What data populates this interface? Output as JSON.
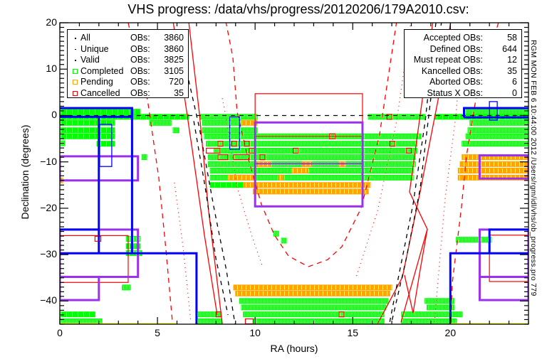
{
  "title": "VHS progress: /data/vhs/progress/20120206/179A2010.csv:",
  "side_text": "RGM MON FEB  6 10:44:00 2012 /Users/rgm/idl/vhs/ob_progress.pro 779",
  "legend": [
    {
      "marker": "dot",
      "label": "All",
      "obs_label": "OBs:",
      "value": "3860"
    },
    {
      "marker": "dot",
      "label": "Unique",
      "obs_label": "OBs:",
      "value": "3860"
    },
    {
      "marker": "dot",
      "label": "Valid",
      "obs_label": "OBs:",
      "value": "3825"
    },
    {
      "marker": "square",
      "color": "#00ff00",
      "label": "Completed",
      "obs_label": "OBs:",
      "value": "3105"
    },
    {
      "marker": "square",
      "color": "#ffa500",
      "label": "Pending",
      "obs_label": "OBs:",
      "value": "720"
    },
    {
      "marker": "square",
      "color": "#ff0000",
      "label": "Cancelled",
      "obs_label": "OBs:",
      "value": "35"
    }
  ],
  "stats": [
    {
      "label": "Accepted OBs:",
      "value": "58"
    },
    {
      "label": "Defined OBs:",
      "value": "644"
    },
    {
      "label": "Must repeat OBs:",
      "value": "12"
    },
    {
      "label": "Kancelled OBs:",
      "value": "35"
    },
    {
      "label": "Aborted OBs:",
      "value": "6"
    },
    {
      "label": "Status X OBs:",
      "value": "0"
    }
  ],
  "colors": {
    "completed": "#00ff00",
    "pending": "#ffa500",
    "cancelled": "#ff0000",
    "purple": "#9b30f0",
    "blue": "#0000ff",
    "yellow": "#ffff00",
    "curve_red": "#ff0000"
  },
  "chart_data": {
    "type": "scatter",
    "title": "VHS progress: /data/vhs/progress/20120206/179A2010.csv:",
    "xlabel": "RA (hours)",
    "ylabel": "Declination (degrees)",
    "xlim": [
      0,
      24
    ],
    "ylim": [
      -45,
      20
    ],
    "xticks": [
      0,
      5,
      10,
      15,
      20
    ],
    "xtick_labels": [
      "0",
      "5",
      "10",
      "15",
      "20"
    ],
    "yticks": [
      20,
      10,
      0,
      -10,
      -20,
      -30,
      -40
    ],
    "ytick_labels": [
      "20",
      "10",
      "0",
      "−10",
      "−20",
      "−30",
      "−40"
    ],
    "legend_position": "top-left",
    "tile_strips": {
      "completed": [
        [
          0,
          4.1,
          0.8,
          "s"
        ],
        [
          0,
          6.6,
          -0.3,
          "s"
        ],
        [
          7.2,
          10.1,
          -0.3,
          "h"
        ],
        [
          15.8,
          18.7,
          -0.3,
          "h"
        ],
        [
          19.2,
          24,
          -0.3,
          "s"
        ],
        [
          20.8,
          24,
          0.8,
          "h"
        ],
        [
          0,
          2.8,
          -1.6,
          "s"
        ],
        [
          4.6,
          5.7,
          -1.6,
          "h"
        ],
        [
          7.3,
          9.3,
          -1.6,
          "h"
        ],
        [
          21.0,
          24,
          -1.6,
          "h"
        ],
        [
          0,
          2.8,
          -3.2,
          "s"
        ],
        [
          5.8,
          6.1,
          -3.2,
          "h"
        ],
        [
          7.3,
          10.1,
          -3.2,
          "h"
        ],
        [
          20.9,
          24,
          -3.2,
          "h"
        ],
        [
          0,
          2.8,
          -4.5,
          "s"
        ],
        [
          7.4,
          18.5,
          -4.5,
          "h"
        ],
        [
          20.8,
          24,
          -4.5,
          "h"
        ],
        [
          1.9,
          2.8,
          -6.1,
          "s"
        ],
        [
          7.5,
          18.3,
          -6.1,
          "h"
        ],
        [
          20.6,
          24,
          -6.1,
          "h"
        ],
        [
          7.9,
          18.3,
          -7.6,
          "h"
        ],
        [
          7.6,
          18.2,
          -9.0,
          "h"
        ],
        [
          7.6,
          18.2,
          -10.5,
          "h"
        ],
        [
          7.7,
          18.1,
          -11.9,
          "h"
        ],
        [
          7.7,
          18.1,
          -13.4,
          "h"
        ],
        [
          7.7,
          9.4,
          -15.0,
          "s"
        ],
        [
          9.2,
          16.8,
          -40.0,
          "h"
        ],
        [
          18.7,
          20.2,
          -40.0,
          "h"
        ],
        [
          9.3,
          16.7,
          -41.4,
          "h"
        ],
        [
          18.8,
          20.2,
          -41.4,
          "h"
        ],
        [
          7.0,
          8.2,
          -42.9,
          "h"
        ],
        [
          9.4,
          16.6,
          -42.9,
          "h"
        ],
        [
          17.5,
          20.6,
          -42.9,
          "h"
        ],
        [
          0,
          1.8,
          -42.9,
          "s"
        ],
        [
          7.0,
          8.3,
          -44.4,
          "h"
        ],
        [
          9.9,
          16.6,
          -44.4,
          "h"
        ],
        [
          17.5,
          20.3,
          -44.4,
          "h"
        ],
        [
          0,
          2.15,
          -44.4,
          "h"
        ],
        [
          3.4,
          4.1,
          -26.6,
          "h"
        ],
        [
          3.4,
          4.1,
          -28.2,
          "s"
        ],
        [
          3.4,
          4.2,
          -29.7,
          "h"
        ],
        [
          3.2,
          3.6,
          -37.1,
          "h"
        ],
        [
          20.3,
          22.1,
          -26.8,
          "h"
        ],
        [
          4.2,
          4.45,
          -9.0,
          "h"
        ],
        [
          10.95,
          11.2,
          -25.5,
          "h"
        ],
        [
          11.35,
          11.6,
          -27.0,
          "h"
        ],
        [
          0,
          0.25,
          -6.0,
          "h"
        ]
      ],
      "pending": [
        [
          9.3,
          10.1,
          -1.6
        ],
        [
          20.6,
          24,
          -9.0
        ],
        [
          20.5,
          24,
          -10.5
        ],
        [
          20.4,
          24,
          -11.9
        ],
        [
          20.4,
          24,
          -13.4
        ],
        [
          9.4,
          15.9,
          -15.0
        ],
        [
          9.9,
          15.8,
          -16.4
        ],
        [
          8.9,
          17.0,
          -37.1
        ],
        [
          9.0,
          16.9,
          -38.4
        ],
        [
          10.1,
          10.8,
          -10.5
        ],
        [
          12.4,
          12.9,
          -10.5
        ],
        [
          14.3,
          14.6,
          -10.5
        ],
        [
          11.9,
          12.7,
          -11.9
        ],
        [
          8.6,
          9.95,
          -13.4
        ],
        [
          11.2,
          11.45,
          -13.4
        ],
        [
          0,
          0.15,
          -14.0
        ]
      ],
      "cancelled": [
        [
          8.1,
          8.35,
          -6.1
        ],
        [
          8.8,
          9.05,
          -6.1
        ],
        [
          9.45,
          9.7,
          -6.1
        ],
        [
          7.5,
          8.2,
          -7.6
        ],
        [
          9.7,
          10.0,
          -7.6
        ],
        [
          11.95,
          12.2,
          -7.6
        ],
        [
          17.75,
          18.0,
          -7.6
        ],
        [
          8.1,
          8.6,
          -9.0
        ],
        [
          8.9,
          9.7,
          -9.0
        ],
        [
          10.25,
          10.5,
          -9.0
        ],
        [
          13.8,
          14.1,
          -4.5
        ],
        [
          16.75,
          17.0,
          -0.3
        ],
        [
          16.9,
          17.15,
          -6.1
        ],
        [
          9.5,
          9.9,
          -44.4
        ],
        [
          8.0,
          8.25,
          -42.9
        ],
        [
          14.3,
          14.55,
          -42.9
        ],
        [
          1.8,
          2.1,
          -26.6
        ]
      ]
    },
    "footprints": {
      "red_rects": [
        [
          10.0,
          15.5,
          4.7,
          -4.5
        ],
        [
          0,
          3.5,
          -25.9,
          -36.0
        ],
        [
          22.0,
          24,
          -25.8,
          -35.8
        ]
      ],
      "purple_rects": [
        [
          10.0,
          15.5,
          -1.5,
          -19.6
        ],
        [
          0,
          4.0,
          -8.8,
          -14.0
        ],
        [
          0,
          4.0,
          -24.6,
          -34.8
        ],
        [
          0,
          2.0,
          -34.8,
          -39.8
        ],
        [
          21.5,
          24,
          -24.6,
          -34.8
        ],
        [
          21.5,
          24,
          -34.8,
          -39.8
        ],
        [
          21.5,
          24,
          -8.6,
          -13.6
        ]
      ],
      "purple_lines": [
        [
          [
            10.0,
            -10.4
          ],
          [
            15.5,
            -10.4
          ]
        ]
      ],
      "blue_thin_rects": [
        [
          8.7,
          9.2,
          -0.3,
          -7.3
        ],
        [
          2.04,
          2.66,
          -1.9,
          -11.0
        ],
        [
          22.0,
          22.4,
          3.0,
          -1.0
        ]
      ],
      "blue_lines": [
        [
          [
            0,
            1.6
          ],
          [
            3.7,
            1.6
          ],
          [
            3.7,
            -29.7
          ]
        ],
        [
          [
            0,
            -0.3
          ],
          [
            3.7,
            -0.3
          ]
        ],
        [
          [
            2.0,
            -0.3
          ],
          [
            2.0,
            -29.7
          ]
        ],
        [
          [
            0,
            -24.6
          ],
          [
            2.0,
            -24.6
          ]
        ],
        [
          [
            0,
            -29.7
          ],
          [
            7.0,
            -29.7
          ],
          [
            7.0,
            -45
          ]
        ],
        [
          [
            20.7,
            -0.4
          ],
          [
            20.7,
            1.6
          ],
          [
            24,
            1.6
          ]
        ],
        [
          [
            20.7,
            -0.4
          ],
          [
            24,
            -0.4
          ]
        ],
        [
          [
            24,
            -24.6
          ],
          [
            22.0,
            -24.6
          ],
          [
            22.0,
            -29.7
          ]
        ],
        [
          [
            24,
            -29.7
          ],
          [
            20.0,
            -29.7
          ],
          [
            20.0,
            -45
          ]
        ]
      ],
      "yellow_lines": [
        [
          [
            0,
            -45
          ],
          [
            6.0,
            -45
          ]
        ],
        [
          [
            20.0,
            -45
          ],
          [
            24,
            -45
          ]
        ]
      ]
    },
    "curves": {
      "red_solid": [
        [
          [
            6.6,
            20.3
          ],
          [
            7.15,
            0.4
          ],
          [
            7.62,
            -20.6
          ],
          [
            8.32,
            -44.9
          ]
        ],
        [
          [
            5.8,
            20.3
          ],
          [
            6.35,
            5.0
          ],
          [
            6.78,
            -7.3
          ],
          [
            7.4,
            -25.7
          ],
          [
            8.06,
            -43.0
          ]
        ],
        [
          [
            20.02,
            20.3
          ],
          [
            19.37,
            3.4
          ],
          [
            18.45,
            -16.5
          ],
          [
            17.54,
            -34.9
          ],
          [
            16.27,
            -44.9
          ]
        ],
        [
          [
            19.11,
            20.3
          ],
          [
            18.56,
            3.4
          ],
          [
            17.91,
            -16.5
          ],
          [
            18.82,
            -24.5
          ],
          [
            18.45,
            -33.4
          ],
          [
            18.09,
            -42.6
          ]
        ],
        [
          [
            18.82,
            -24.5
          ],
          [
            17.47,
            -44.6
          ]
        ],
        [
          [
            17.65,
            -34.4
          ],
          [
            18.09,
            -42.6
          ]
        ]
      ],
      "red_dashed": [
        [
          [
            3.5,
            20
          ],
          [
            4.05,
            9.5
          ],
          [
            4.49,
            3.4
          ],
          [
            5.07,
            -13.5
          ],
          [
            5.43,
            -28.8
          ],
          [
            5.76,
            -44.2
          ]
        ],
        [
          [
            8.5,
            20.3
          ],
          [
            8.86,
            12.6
          ],
          [
            9.08,
            0.8
          ],
          [
            9.59,
            -8.4
          ],
          [
            10.32,
            -19.1
          ],
          [
            10.98,
            -25.7
          ],
          [
            11.71,
            -30.3
          ],
          [
            12.73,
            -32.6
          ],
          [
            13.71,
            -31.1
          ],
          [
            14.44,
            -28.3
          ],
          [
            15.43,
            -20.0
          ],
          [
            16.37,
            -4.2
          ],
          [
            17.25,
            20.3
          ]
        ],
        [
          [
            22.46,
            20
          ],
          [
            21.3,
            3.4
          ],
          [
            20.82,
            -8.8
          ],
          [
            20.57,
            -19.6
          ],
          [
            20.09,
            -36.4
          ],
          [
            20.02,
            -44.6
          ]
        ]
      ],
      "red_dotted": [
        [
          [
            5.87,
            -14.5
          ],
          [
            6.31,
            -28.3
          ],
          [
            6.71,
            -44.6
          ]
        ],
        [
          [
            8.32,
            3.7
          ],
          [
            8.5,
            -0.1
          ],
          [
            9.08,
            -15.4
          ],
          [
            9.81,
            -25.7
          ],
          [
            10.36,
            -32.3
          ]
        ],
        [
          [
            17.98,
            20.3
          ],
          [
            17.25,
            -1.2
          ],
          [
            16.27,
            -20.6
          ],
          [
            15.17,
            -34.9
          ]
        ],
        [
          [
            20.46,
            9.6
          ],
          [
            20.28,
            -0.1
          ],
          [
            19.73,
            -18.0
          ],
          [
            19.18,
            -44.6
          ]
        ]
      ],
      "black_dashed": [
        [
          [
            0,
            0
          ],
          [
            24,
            0
          ]
        ],
        [
          [
            6.6,
            7.6
          ],
          [
            7.15,
            -2.7
          ],
          [
            7.88,
            -19.6
          ],
          [
            8.53,
            -33.4
          ],
          [
            8.97,
            -44.9
          ]
        ],
        [
          [
            6.86,
            -1.2
          ],
          [
            7.44,
            -15.4
          ],
          [
            7.99,
            -30.8
          ],
          [
            8.61,
            -43.0
          ]
        ],
        [
          [
            19.55,
            20.3
          ],
          [
            19.0,
            3.8
          ],
          [
            18.45,
            -15.9
          ],
          [
            17.72,
            -31.3
          ],
          [
            16.99,
            -44.6
          ]
        ],
        [
          [
            19.26,
            20
          ],
          [
            18.71,
            -1.2
          ],
          [
            18.09,
            -19.1
          ],
          [
            17.36,
            -34.4
          ],
          [
            16.89,
            -44.6
          ]
        ]
      ]
    }
  }
}
